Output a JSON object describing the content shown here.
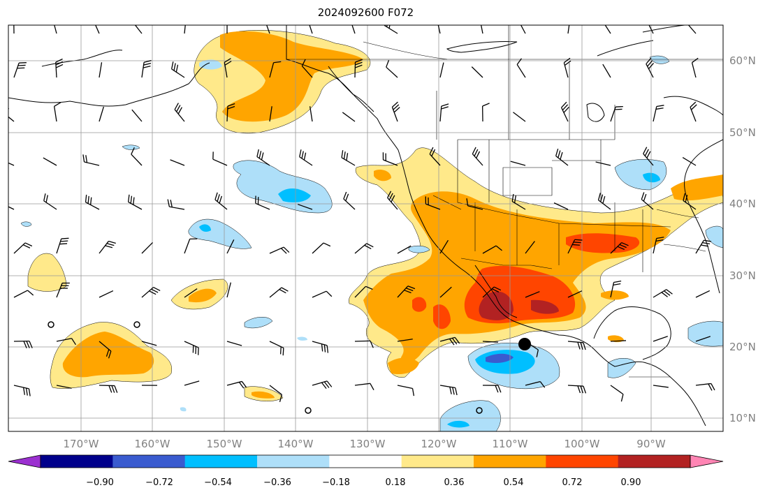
{
  "title": "2024092600 F072",
  "lat_labels": [
    "60°N",
    "50°N",
    "40°N",
    "30°N",
    "20°N",
    "10°N"
  ],
  "lon_labels": [
    "170°W",
    "160°W",
    "150°W",
    "140°W",
    "130°W",
    "120°W",
    "110°W",
    "100°W",
    "90°W"
  ],
  "colorbar": {
    "ticks": [
      "−0.90",
      "−0.72",
      "−0.54",
      "−0.36",
      "−0.18",
      "0.18",
      "0.36",
      "0.54",
      "0.72",
      "0.90"
    ],
    "colors": [
      "#9b30d0",
      "#00008b",
      "#3a5bcf",
      "#00bfff",
      "#aedff9",
      "#ffffff",
      "#ffe98a",
      "#ffa500",
      "#ff4500",
      "#b22222",
      "#ff85b4"
    ]
  },
  "colors": {
    "light_yellow": "#ffe98a",
    "orange": "#ffa500",
    "red_orange": "#ff4500",
    "dark_red": "#b22222",
    "light_blue": "#aedff9",
    "sky_blue": "#00bfff",
    "royal_blue": "#3a5bcf"
  },
  "storm_marker": "filled-circle"
}
